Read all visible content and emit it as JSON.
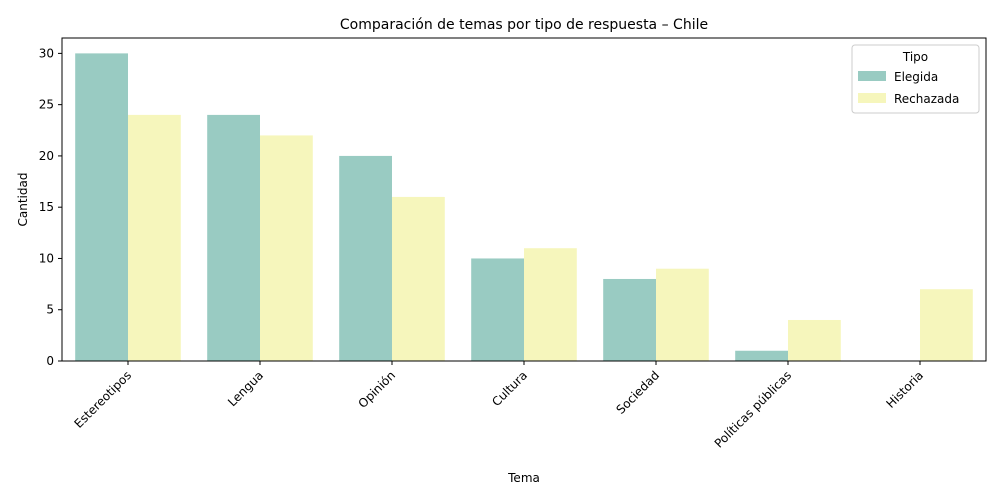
{
  "chart_data": {
    "type": "bar",
    "title": "Comparación de temas por tipo de respuesta – Chile",
    "xlabel": "Tema",
    "ylabel": "Cantidad",
    "categories": [
      "Estereotipos",
      "Lengua",
      "Opinión",
      "Cultura",
      "Sociedad",
      "Políticas públicas",
      "Historia"
    ],
    "series": [
      {
        "name": "Elegida",
        "color": "#99cbc2",
        "values": [
          30,
          24,
          20,
          10,
          8,
          1,
          0
        ]
      },
      {
        "name": "Rechazada",
        "color": "#f6f6bc",
        "values": [
          24,
          22,
          16,
          11,
          9,
          4,
          7
        ]
      }
    ],
    "ylim": [
      0,
      31.5
    ],
    "yticks": [
      0,
      5,
      10,
      15,
      20,
      25,
      30
    ],
    "legend": {
      "title": "Tipo",
      "position": "top-right"
    },
    "grid": false
  }
}
